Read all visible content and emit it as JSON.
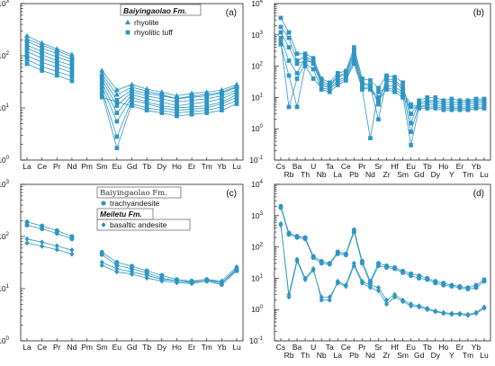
{
  "chart_data": [
    {
      "type": "line",
      "panel_label": "(a)",
      "categories": [
        "La",
        "Ce",
        "Pr",
        "Nd",
        "Pm",
        "Sm",
        "Eu",
        "Gd",
        "Tb",
        "Dy",
        "Ho",
        "Er",
        "Tm",
        "Yb",
        "Lu"
      ],
      "y_scale": "log",
      "ylim_exponents": [
        0,
        3
      ],
      "y_tick_labels": [
        {
          "base": "10",
          "exp": "0"
        },
        {
          "base": "10",
          "exp": "1"
        },
        {
          "base": "10",
          "exp": "2"
        },
        {
          "base": "10",
          "exp": "3"
        }
      ],
      "legend": {
        "title": "Baiyingaolao Fm.",
        "entries": [
          {
            "label": "rhyolite",
            "marker": "triangle"
          },
          {
            "label": "rhyolitic tuff",
            "marker": "square"
          }
        ],
        "placement": "top-center"
      },
      "series": [
        {
          "marker": "triangle",
          "values": [
            240,
            175,
            135,
            105,
            null,
            52,
            22,
            28,
            23,
            20,
            17,
            19,
            20,
            22,
            28
          ]
        },
        {
          "marker": "triangle",
          "values": [
            210,
            160,
            125,
            95,
            null,
            45,
            18,
            25,
            21,
            18,
            15,
            17,
            18,
            20,
            26
          ]
        },
        {
          "marker": "square",
          "values": [
            190,
            140,
            110,
            85,
            null,
            40,
            14,
            22,
            19,
            17,
            15,
            16,
            17,
            19,
            25
          ]
        },
        {
          "marker": "square",
          "values": [
            160,
            120,
            95,
            75,
            null,
            35,
            11,
            20,
            17,
            15,
            13,
            14,
            15,
            17,
            22
          ]
        },
        {
          "marker": "square",
          "values": [
            140,
            105,
            80,
            65,
            null,
            30,
            8,
            18,
            15,
            13,
            11,
            12,
            13,
            15,
            20
          ]
        },
        {
          "marker": "square",
          "values": [
            120,
            90,
            70,
            55,
            null,
            26,
            5.5,
            16,
            13,
            11,
            10,
            10.5,
            11,
            13,
            18
          ]
        },
        {
          "marker": "square",
          "values": [
            100,
            75,
            60,
            47,
            null,
            22,
            2.8,
            14,
            12,
            10,
            9,
            9.5,
            10,
            12,
            16
          ]
        },
        {
          "marker": "square",
          "values": [
            85,
            62,
            50,
            40,
            null,
            19,
            1.7,
            12,
            10,
            9,
            8,
            8.5,
            9,
            10.5,
            14
          ]
        },
        {
          "marker": "square",
          "values": [
            70,
            52,
            42,
            33,
            null,
            16,
            13,
            11,
            9,
            8,
            7,
            7.5,
            8,
            9,
            12
          ]
        }
      ]
    },
    {
      "type": "line",
      "panel_label": "(b)",
      "categories": [
        "Cs",
        "Rb",
        "Ba",
        "Th",
        "U",
        "Nb",
        "Ta",
        "La",
        "Ce",
        "Pb",
        "Pr",
        "Nd",
        "Sr",
        "Zr",
        "Hf",
        "Sm",
        "Eu",
        "Gd",
        "Tb",
        "Dy",
        "Ho",
        "Y",
        "Er",
        "Tm",
        "Yb",
        "Lu"
      ],
      "y_scale": "log",
      "ylim_exponents": [
        -1,
        4
      ],
      "y_tick_labels": [
        {
          "base": "10",
          "exp": "-1"
        },
        {
          "base": "10",
          "exp": "0"
        },
        {
          "base": "10",
          "exp": "1"
        },
        {
          "base": "10",
          "exp": "2"
        },
        {
          "base": "10",
          "exp": "3"
        },
        {
          "base": "10",
          "exp": "4"
        }
      ],
      "series": [
        {
          "marker": "square",
          "values": [
            3500,
            1200,
            250,
            250,
            180,
            40,
            30,
            60,
            70,
            400,
            40,
            35,
            20,
            50,
            45,
            30,
            1.5,
            8,
            10,
            10,
            8,
            9,
            8,
            8,
            9,
            9
          ]
        },
        {
          "marker": "square",
          "values": [
            1800,
            800,
            150,
            200,
            150,
            35,
            25,
            50,
            60,
            300,
            30,
            25,
            6,
            40,
            35,
            22,
            3,
            7,
            8,
            8,
            7,
            7,
            7,
            7,
            8,
            8
          ]
        },
        {
          "marker": "square",
          "values": [
            1200,
            400,
            120,
            150,
            130,
            30,
            22,
            45,
            55,
            250,
            28,
            22,
            2,
            35,
            30,
            18,
            0.8,
            6,
            7,
            7,
            6,
            6,
            6,
            6,
            7,
            7
          ]
        },
        {
          "marker": "square",
          "values": [
            800,
            150,
            60,
            180,
            120,
            25,
            20,
            35,
            45,
            200,
            22,
            20,
            10,
            25,
            22,
            15,
            6,
            5,
            6,
            6,
            5,
            5,
            5,
            5,
            6,
            6
          ]
        },
        {
          "marker": "square",
          "values": [
            500,
            50,
            5,
            100,
            40,
            20,
            18,
            30,
            40,
            150,
            18,
            0.5,
            15,
            20,
            18,
            12,
            0.3,
            5,
            5,
            5,
            4.5,
            4.5,
            4.5,
            4.5,
            5,
            5
          ]
        },
        {
          "marker": "square",
          "values": [
            600,
            5,
            40,
            120,
            80,
            18,
            15,
            25,
            35,
            120,
            20,
            18,
            8,
            18,
            15,
            10,
            5,
            4.5,
            4.5,
            4.5,
            4,
            4,
            4,
            4,
            4.5,
            4.5
          ]
        }
      ]
    },
    {
      "type": "line",
      "panel_label": "(c)",
      "categories": [
        "La",
        "Ce",
        "Pr",
        "Nd",
        "Pm",
        "Sm",
        "Eu",
        "Gd",
        "Tb",
        "Dy",
        "Ho",
        "Er",
        "Tm",
        "Yb",
        "Lu"
      ],
      "y_scale": "log",
      "ylim_exponents": [
        0,
        3
      ],
      "y_tick_labels": [
        {
          "base": "10",
          "exp": "0"
        },
        {
          "base": "10",
          "exp": "1"
        },
        {
          "base": "10",
          "exp": "2"
        },
        {
          "base": "10",
          "exp": "3"
        }
      ],
      "legend": {
        "groups": [
          {
            "title": "Baiyingaolao Fm.",
            "entries": [
              {
                "label": "trachyandesite",
                "marker": "circle"
              }
            ]
          },
          {
            "title": "Meiletu Fm.",
            "entries": [
              {
                "label": "basaltic andesite",
                "marker": "diamond"
              }
            ]
          }
        ],
        "placement": "top-center"
      },
      "series": [
        {
          "marker": "circle",
          "values": [
            190,
            160,
            130,
            100,
            null,
            50,
            32,
            27,
            22,
            18,
            15,
            14,
            15,
            13,
            24
          ]
        },
        {
          "marker": "circle",
          "values": [
            165,
            140,
            115,
            90,
            null,
            45,
            28,
            24,
            20,
            16,
            14,
            13,
            14,
            12,
            22
          ]
        },
        {
          "marker": "diamond",
          "values": [
            90,
            78,
            66,
            55,
            null,
            32,
            24,
            21,
            18,
            15,
            14,
            13.5,
            15,
            14,
            26
          ]
        },
        {
          "marker": "diamond",
          "values": [
            75,
            65,
            56,
            46,
            null,
            28,
            21,
            19,
            16,
            14,
            13,
            12.5,
            14,
            13,
            23
          ]
        }
      ]
    },
    {
      "type": "line",
      "panel_label": "(d)",
      "categories": [
        "Cs",
        "Rb",
        "Ba",
        "Th",
        "U",
        "Nb",
        "Ta",
        "La",
        "Ce",
        "Pb",
        "Pr",
        "Nd",
        "Sr",
        "Zr",
        "Hf",
        "Sm",
        "Eu",
        "Gd",
        "Tb",
        "Dy",
        "Ho",
        "Y",
        "Er",
        "Tm",
        "Yb",
        "Lu"
      ],
      "y_scale": "log",
      "ylim_exponents": [
        -1,
        4
      ],
      "y_tick_labels": [
        {
          "base": "10",
          "exp": "-1"
        },
        {
          "base": "10",
          "exp": "0"
        },
        {
          "base": "10",
          "exp": "1"
        },
        {
          "base": "10",
          "exp": "2"
        },
        {
          "base": "10",
          "exp": "3"
        },
        {
          "base": "10",
          "exp": "4"
        }
      ],
      "series": [
        {
          "marker": "circle",
          "values": [
            2000,
            280,
            220,
            200,
            50,
            35,
            30,
            70,
            60,
            350,
            35,
            8,
            30,
            25,
            22,
            17,
            14,
            12,
            10,
            8,
            7,
            6,
            5.5,
            5,
            6,
            9
          ]
        },
        {
          "marker": "circle",
          "values": [
            1800,
            250,
            200,
            180,
            45,
            30,
            28,
            60,
            55,
            300,
            30,
            7,
            25,
            22,
            20,
            15,
            12,
            10,
            9,
            7,
            6,
            5.5,
            5,
            4.5,
            5,
            8
          ]
        },
        {
          "marker": "diamond",
          "values": [
            500,
            3,
            40,
            10,
            20,
            2,
            2,
            8,
            6,
            30,
            8,
            6,
            5,
            2,
            3,
            2,
            1.5,
            1.3,
            1.1,
            0.9,
            0.8,
            0.75,
            0.75,
            0.7,
            0.8,
            1.2
          ]
        },
        {
          "marker": "diamond",
          "values": [
            550,
            2.5,
            35,
            9,
            18,
            2.5,
            2.5,
            7,
            5.5,
            25,
            7,
            5,
            4,
            1.5,
            2.5,
            1.8,
            1.3,
            1.2,
            1,
            0.85,
            0.75,
            0.7,
            0.7,
            0.65,
            0.75,
            1.1
          ]
        }
      ]
    }
  ],
  "colors": {
    "series": "#2e95c4",
    "axis": "#222222"
  }
}
